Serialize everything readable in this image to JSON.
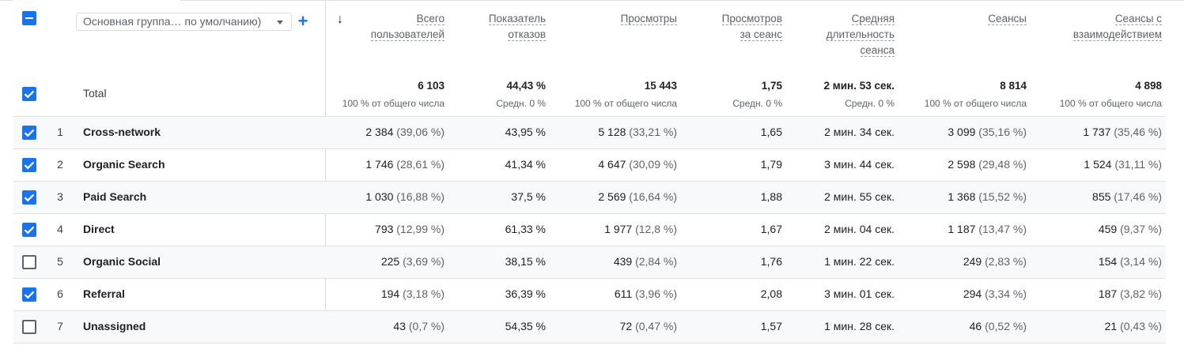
{
  "controls": {
    "dimension_select": "Основная группа… по умолчанию)",
    "add_dimension": "+",
    "sort_arrow": "↓"
  },
  "columns": [
    {
      "key": "users",
      "label_line1": "Всего",
      "label_line2": "пользователей",
      "label_line3": ""
    },
    {
      "key": "bounce",
      "label_line1": "Показатель",
      "label_line2": "отказов",
      "label_line3": ""
    },
    {
      "key": "views",
      "label_line1": "Просмотры",
      "label_line2": "",
      "label_line3": ""
    },
    {
      "key": "vps",
      "label_line1": "Просмотров",
      "label_line2": "за сеанс",
      "label_line3": ""
    },
    {
      "key": "avgdur",
      "label_line1": "Средняя",
      "label_line2": "длительность",
      "label_line3": "сеанса"
    },
    {
      "key": "sessions",
      "label_line1": "Сеансы",
      "label_line2": "",
      "label_line3": ""
    },
    {
      "key": "engaged",
      "label_line1": "Сеансы с",
      "label_line2": "взаимодействием",
      "label_line3": ""
    }
  ],
  "total": {
    "label": "Total",
    "values": [
      "6 103",
      "44,43 %",
      "15 443",
      "1,75",
      "2 мин. 53 сек.",
      "8 814",
      "4 898"
    ],
    "subs": [
      "100 % от общего числа",
      "Средн. 0 %",
      "100 % от общего числа",
      "Средн. 0 %",
      "Средн. 0 %",
      "100 % от общего числа",
      "100 % от общего числа"
    ]
  },
  "rows": [
    {
      "num": "1",
      "name": "Cross-network",
      "checked": true,
      "users": "2 384",
      "users_pct": "(39,06 %)",
      "bounce": "43,95 %",
      "views": "5 128",
      "views_pct": "(33,21 %)",
      "vps": "1,65",
      "avgdur": "2 мин. 34 сек.",
      "sessions": "3 099",
      "sessions_pct": "(35,16 %)",
      "engaged": "1 737",
      "engaged_pct": "(35,46 %)"
    },
    {
      "num": "2",
      "name": "Organic Search",
      "checked": true,
      "users": "1 746",
      "users_pct": "(28,61 %)",
      "bounce": "41,34 %",
      "views": "4 647",
      "views_pct": "(30,09 %)",
      "vps": "1,79",
      "avgdur": "3 мин. 44 сек.",
      "sessions": "2 598",
      "sessions_pct": "(29,48 %)",
      "engaged": "1 524",
      "engaged_pct": "(31,11 %)"
    },
    {
      "num": "3",
      "name": "Paid Search",
      "checked": true,
      "users": "1 030",
      "users_pct": "(16,88 %)",
      "bounce": "37,5 %",
      "views": "2 569",
      "views_pct": "(16,64 %)",
      "vps": "1,88",
      "avgdur": "2 мин. 55 сек.",
      "sessions": "1 368",
      "sessions_pct": "(15,52 %)",
      "engaged": "855",
      "engaged_pct": "(17,46 %)"
    },
    {
      "num": "4",
      "name": "Direct",
      "checked": true,
      "users": "793",
      "users_pct": "(12,99 %)",
      "bounce": "61,33 %",
      "views": "1 977",
      "views_pct": "(12,8 %)",
      "vps": "1,67",
      "avgdur": "2 мин. 04 сек.",
      "sessions": "1 187",
      "sessions_pct": "(13,47 %)",
      "engaged": "459",
      "engaged_pct": "(9,37 %)"
    },
    {
      "num": "5",
      "name": "Organic Social",
      "checked": false,
      "users": "225",
      "users_pct": "(3,69 %)",
      "bounce": "38,15 %",
      "views": "439",
      "views_pct": "(2,84 %)",
      "vps": "1,76",
      "avgdur": "1 мин. 22 сек.",
      "sessions": "249",
      "sessions_pct": "(2,83 %)",
      "engaged": "154",
      "engaged_pct": "(3,14 %)"
    },
    {
      "num": "6",
      "name": "Referral",
      "checked": true,
      "users": "194",
      "users_pct": "(3,18 %)",
      "bounce": "36,39 %",
      "views": "611",
      "views_pct": "(3,96 %)",
      "vps": "2,08",
      "avgdur": "3 мин. 01 сек.",
      "sessions": "294",
      "sessions_pct": "(3,34 %)",
      "engaged": "187",
      "engaged_pct": "(3,82 %)"
    },
    {
      "num": "7",
      "name": "Unassigned",
      "checked": false,
      "users": "43",
      "users_pct": "(0,7 %)",
      "bounce": "54,35 %",
      "views": "72",
      "views_pct": "(0,47 %)",
      "vps": "1,57",
      "avgdur": "1 мин. 28 сек.",
      "sessions": "46",
      "sessions_pct": "(0,52 %)",
      "engaged": "21",
      "engaged_pct": "(0,43 %)"
    }
  ],
  "colors": {
    "accent": "#1a73e8",
    "row_shade": "#f8f9fa",
    "muted_text": "#5f6368"
  }
}
